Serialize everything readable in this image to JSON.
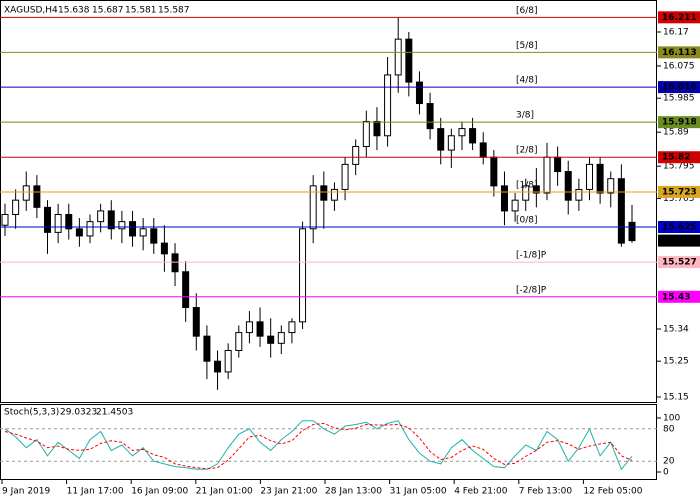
{
  "chart_data": [
    {
      "type": "candlestick",
      "title": {
        "symbol": "XAGUSD,H4",
        "ohlc": [
          15.638,
          15.687,
          15.581,
          15.587
        ]
      },
      "open": [
        15.63,
        15.66,
        15.7,
        15.74,
        15.68,
        15.61,
        15.66,
        15.62,
        15.6,
        15.64,
        15.67,
        15.62,
        15.64,
        15.6,
        15.62,
        15.58,
        15.55,
        15.5,
        15.4,
        15.32,
        15.25,
        15.22,
        15.28,
        15.33,
        15.36,
        15.32,
        15.3,
        15.33,
        15.36,
        15.62,
        15.74,
        15.7,
        15.73,
        15.8,
        15.85,
        15.92,
        15.88,
        16.05,
        16.15,
        16.03,
        15.97,
        15.9,
        15.84,
        15.88,
        15.9,
        15.86,
        15.82,
        15.74,
        15.67,
        15.7,
        15.74,
        15.72,
        15.82,
        15.78,
        15.7,
        15.73,
        15.8,
        15.72,
        15.76,
        15.638
      ],
      "high": [
        15.69,
        15.73,
        15.78,
        15.77,
        15.7,
        15.69,
        15.69,
        15.65,
        15.66,
        15.69,
        15.7,
        15.67,
        15.67,
        15.65,
        15.65,
        15.63,
        15.58,
        15.53,
        15.44,
        15.35,
        15.28,
        15.3,
        15.35,
        15.39,
        15.4,
        15.37,
        15.35,
        15.37,
        15.64,
        15.77,
        15.78,
        15.75,
        15.82,
        15.87,
        15.95,
        15.96,
        16.1,
        16.21,
        16.17,
        16.06,
        16.0,
        15.93,
        15.9,
        15.92,
        15.93,
        15.89,
        15.84,
        15.78,
        15.72,
        15.76,
        15.79,
        15.86,
        15.85,
        15.81,
        15.76,
        15.82,
        15.82,
        15.78,
        15.8,
        15.687
      ],
      "low": [
        15.6,
        15.62,
        15.67,
        15.65,
        15.55,
        15.58,
        15.59,
        15.57,
        15.58,
        15.61,
        15.59,
        15.58,
        15.57,
        15.56,
        15.55,
        15.5,
        15.46,
        15.36,
        15.28,
        15.2,
        15.17,
        15.2,
        15.26,
        15.3,
        15.29,
        15.26,
        15.27,
        15.3,
        15.34,
        15.58,
        15.62,
        15.67,
        15.7,
        15.77,
        15.82,
        15.84,
        15.85,
        16.0,
        15.99,
        15.94,
        15.87,
        15.8,
        15.79,
        15.84,
        15.84,
        15.8,
        15.71,
        15.63,
        15.64,
        15.67,
        15.68,
        15.7,
        15.74,
        15.66,
        15.67,
        15.7,
        15.69,
        15.68,
        15.57,
        15.581
      ],
      "close": [
        15.66,
        15.7,
        15.74,
        15.68,
        15.61,
        15.66,
        15.62,
        15.6,
        15.64,
        15.67,
        15.62,
        15.64,
        15.6,
        15.62,
        15.58,
        15.55,
        15.5,
        15.4,
        15.32,
        15.25,
        15.22,
        15.28,
        15.33,
        15.36,
        15.32,
        15.3,
        15.33,
        15.36,
        15.62,
        15.74,
        15.7,
        15.73,
        15.8,
        15.85,
        15.92,
        15.88,
        16.05,
        16.15,
        16.03,
        15.97,
        15.9,
        15.84,
        15.88,
        15.9,
        15.86,
        15.82,
        15.74,
        15.67,
        15.7,
        15.74,
        15.72,
        15.82,
        15.78,
        15.7,
        15.73,
        15.8,
        15.72,
        15.76,
        15.58,
        15.587
      ],
      "up_color": "#ffffff",
      "down_color": "#000000",
      "x_labels": [
        "9 Jan 2019",
        "11 Jan 17:00",
        "16 Jan 09:00",
        "21 Jan 01:00",
        "23 Jan 21:00",
        "28 Jan 13:00",
        "31 Jan 05:00",
        "4 Feb 21:00",
        "7 Feb 13:00",
        "12 Feb 05:00"
      ],
      "ylim": [
        15.136,
        16.251
      ],
      "yticks": [
        16.17,
        16.075,
        15.985,
        15.89,
        15.795,
        15.705,
        15.34,
        15.25,
        15.15
      ],
      "levels": [
        {
          "label": "[6/8]",
          "value": 16.211,
          "color": "#d00000"
        },
        {
          "label": "[5/8]",
          "value": 16.113,
          "color": "#8a8a1e"
        },
        {
          "label": "[4/8]",
          "value": 16.016,
          "color": "#0000b0"
        },
        {
          "label": "3/8]",
          "value": 15.918,
          "color": "#6b8e23"
        },
        {
          "label": "[2/8]",
          "value": 15.82,
          "color": "#d00000"
        },
        {
          "label": "[1/8]",
          "value": 15.723,
          "color": "#daa520"
        },
        {
          "label": "[0/8]",
          "value": 15.625,
          "color": "#0000cd"
        },
        {
          "label": "[-1/8]P",
          "value": 15.527,
          "color": "#ffb6c1"
        },
        {
          "label": "[-2/8]P",
          "value": 15.43,
          "color": "#ff00ff"
        }
      ],
      "current_price": 15.587
    },
    {
      "type": "line",
      "title": "Stoch(5,3,3)",
      "title_values": [
        29.0323,
        21.4503
      ],
      "series": [
        {
          "color": "#20b2aa",
          "dash": false,
          "values": [
            80,
            65,
            45,
            60,
            30,
            55,
            40,
            25,
            60,
            75,
            40,
            50,
            30,
            45,
            20,
            15,
            10,
            8,
            5,
            5,
            15,
            45,
            70,
            80,
            55,
            40,
            60,
            75,
            95,
            95,
            80,
            70,
            85,
            88,
            92,
            80,
            90,
            95,
            60,
            35,
            20,
            15,
            45,
            60,
            40,
            25,
            10,
            8,
            30,
            50,
            40,
            75,
            60,
            20,
            45,
            80,
            30,
            55,
            5,
            29.0323
          ]
        },
        {
          "color": "#ff0000",
          "dash": true,
          "values": [
            75,
            70,
            63,
            57,
            45,
            48,
            42,
            40,
            42,
            53,
            58,
            55,
            40,
            42,
            32,
            27,
            15,
            11,
            8,
            6,
            8,
            22,
            43,
            65,
            68,
            58,
            52,
            58,
            77,
            88,
            90,
            82,
            78,
            81,
            88,
            87,
            87,
            88,
            82,
            63,
            38,
            23,
            27,
            40,
            48,
            42,
            25,
            14,
            16,
            29,
            40,
            55,
            58,
            52,
            42,
            48,
            52,
            55,
            30,
            21.4503
          ]
        }
      ],
      "ylim": [
        0,
        100
      ],
      "yticks": [
        100,
        80,
        20,
        0
      ]
    }
  ]
}
